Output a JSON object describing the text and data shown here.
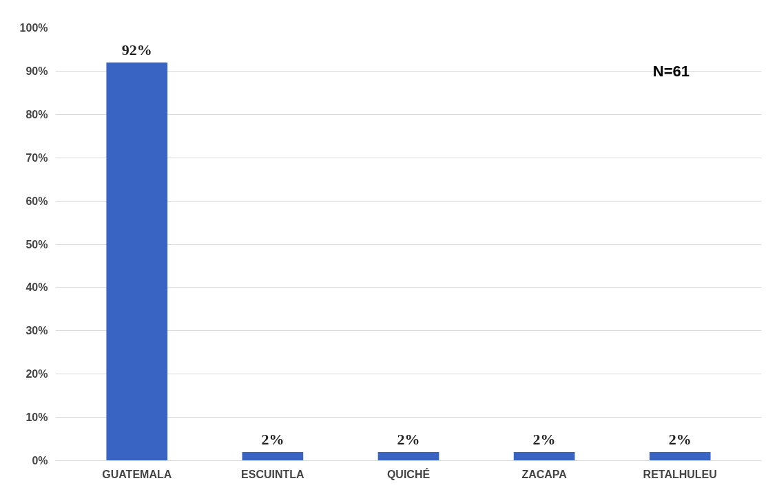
{
  "chart_data": {
    "type": "bar",
    "categories": [
      "GUATEMALA",
      "ESCUINTLA",
      "QUICHÉ",
      "ZACAPA",
      "RETALHULEU"
    ],
    "values": [
      92,
      2,
      2,
      2,
      2
    ],
    "value_labels": [
      "92%",
      "2%",
      "2%",
      "2%",
      "2%"
    ],
    "color": "#3a64c4",
    "ylim": [
      0,
      100
    ],
    "yticks": [
      {
        "value": 0,
        "label": "0%"
      },
      {
        "value": 10,
        "label": "10%"
      },
      {
        "value": 20,
        "label": "20%"
      },
      {
        "value": 30,
        "label": "30%"
      },
      {
        "value": 40,
        "label": "40%"
      },
      {
        "value": 50,
        "label": "50%"
      },
      {
        "value": 60,
        "label": "60%"
      },
      {
        "value": 70,
        "label": "70%"
      },
      {
        "value": 80,
        "label": "80%"
      },
      {
        "value": 90,
        "label": "90%"
      },
      {
        "value": 100,
        "label": "100%"
      }
    ],
    "grid": "y",
    "annotations": [
      "N=61"
    ]
  }
}
